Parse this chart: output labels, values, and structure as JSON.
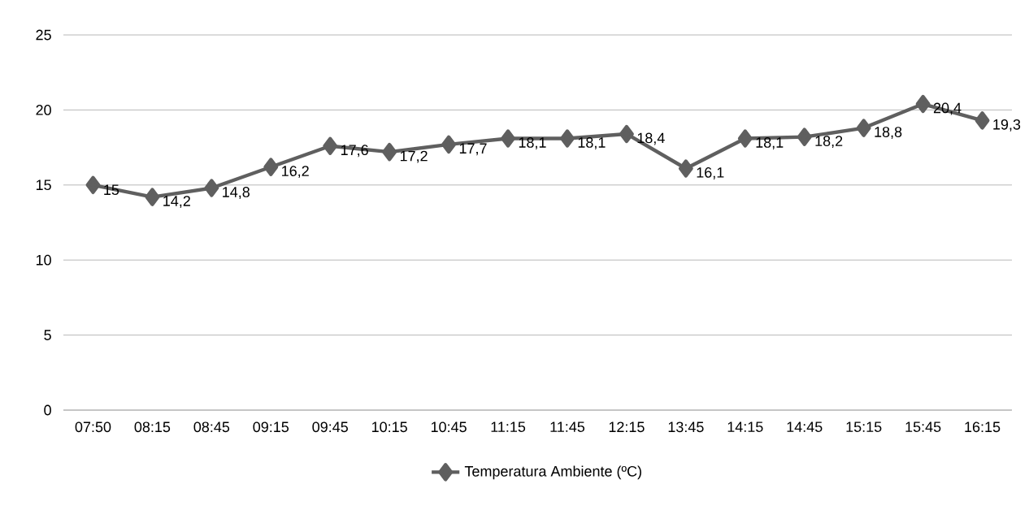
{
  "chart_data": {
    "type": "line",
    "categories": [
      "07:50",
      "08:15",
      "08:45",
      "09:15",
      "09:45",
      "10:15",
      "10:45",
      "11:15",
      "11:45",
      "12:15",
      "13:45",
      "14:15",
      "14:45",
      "15:15",
      "15:45",
      "16:15"
    ],
    "series": [
      {
        "name": "Temperatura Ambiente (ºC)",
        "color": "#5f5f5f",
        "values": [
          15,
          14.2,
          14.8,
          16.2,
          17.6,
          17.2,
          17.7,
          18.1,
          18.1,
          18.4,
          16.1,
          18.1,
          18.2,
          18.8,
          20.4,
          19.3
        ],
        "value_labels": [
          "15",
          "14,2",
          "14,8",
          "16,2",
          "17,6",
          "17,2",
          "17,7",
          "18,1",
          "18,1",
          "18,4",
          "16,1",
          "18,1",
          "18,2",
          "18,8",
          "20,4",
          "19,3"
        ]
      }
    ],
    "ylim": [
      0,
      25
    ],
    "yticks": [
      0,
      5,
      10,
      15,
      20,
      25
    ],
    "grid": "y",
    "legend": "bottom",
    "marker": "diamond",
    "line_style": "solid"
  }
}
